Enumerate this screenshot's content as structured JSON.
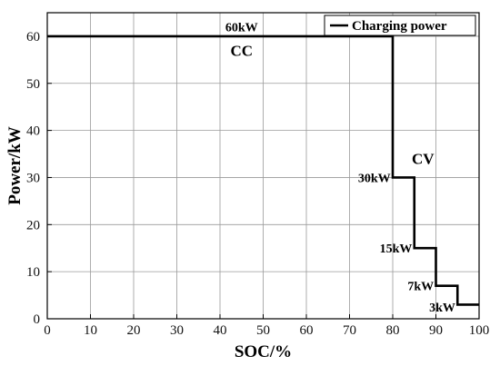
{
  "chart_data": {
    "type": "line",
    "title": "",
    "xlabel": "SOC/%",
    "ylabel": "Power/kW",
    "xlim": [
      0,
      100
    ],
    "ylim": [
      0,
      65
    ],
    "xticks": [
      0,
      10,
      20,
      30,
      40,
      50,
      60,
      70,
      80,
      90,
      100
    ],
    "yticks": [
      0,
      10,
      20,
      30,
      40,
      50,
      60
    ],
    "grid": true,
    "legend": "top-right",
    "series": [
      {
        "name": "Charging power",
        "color": "#000000",
        "step": true,
        "x": [
          0,
          80,
          80,
          85,
          85,
          90,
          90,
          95,
          95,
          100
        ],
        "y": [
          60,
          60,
          30,
          30,
          15,
          15,
          7,
          7,
          3,
          3
        ]
      }
    ],
    "annotations": [
      {
        "text": "60kW",
        "x": 45,
        "y": 62
      },
      {
        "text": "CC",
        "x": 45,
        "y": 57
      },
      {
        "text": "CV",
        "x": 87,
        "y": 34
      },
      {
        "text": "30kW",
        "x": 79.5,
        "y": 30
      },
      {
        "text": "15kW",
        "x": 84.5,
        "y": 15
      },
      {
        "text": "7kW",
        "x": 89.5,
        "y": 7
      },
      {
        "text": "3kW",
        "x": 94.5,
        "y": 2.5
      }
    ]
  }
}
